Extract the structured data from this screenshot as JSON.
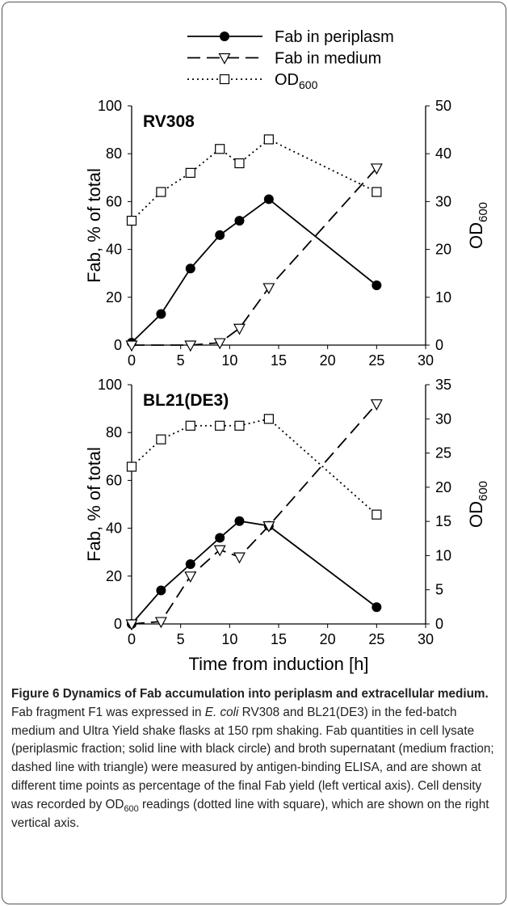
{
  "chart_data": [
    {
      "type": "line",
      "title": "RV308",
      "ylabel": "Fab, % of total",
      "y2label": "OD",
      "y2label_sub": "600",
      "xlim": [
        0,
        30
      ],
      "xticks": [
        0,
        5,
        10,
        15,
        20,
        25,
        30
      ],
      "ylim": [
        0,
        100
      ],
      "yticks": [
        0,
        20,
        40,
        60,
        80,
        100
      ],
      "y2lim": [
        0,
        50
      ],
      "y2ticks": [
        0,
        10,
        20,
        30,
        40,
        50
      ],
      "series": [
        {
          "name": "Fab in periplasm",
          "color": "#000000",
          "dash": "solid",
          "marker": "circle",
          "x": [
            0,
            3,
            6,
            9,
            11,
            14,
            25
          ],
          "values": [
            1,
            13,
            32,
            46,
            52,
            61,
            25
          ]
        },
        {
          "name": "Fab in medium",
          "color": "#000000",
          "dash": "dashed",
          "marker": "triangle",
          "x": [
            0,
            6,
            9,
            11,
            14,
            25
          ],
          "values": [
            0,
            0,
            1,
            7,
            24,
            74
          ]
        },
        {
          "name": "OD",
          "name_sub": "600",
          "color": "#000000",
          "dash": "dotted",
          "marker": "square",
          "axis": "y2",
          "x": [
            0,
            3,
            6,
            9,
            11,
            14,
            25
          ],
          "values": [
            26,
            32,
            36,
            41,
            38,
            43,
            32
          ]
        }
      ]
    },
    {
      "type": "line",
      "title": "BL21(DE3)",
      "ylabel": "Fab, % of total",
      "y2label": "OD",
      "y2label_sub": "600",
      "xlabel": "Time from induction [h]",
      "xlim": [
        0,
        30
      ],
      "xticks": [
        0,
        5,
        10,
        15,
        20,
        25,
        30
      ],
      "ylim": [
        0,
        100
      ],
      "yticks": [
        0,
        20,
        40,
        60,
        80,
        100
      ],
      "y2lim": [
        0,
        35
      ],
      "y2ticks": [
        0,
        5,
        10,
        15,
        20,
        25,
        30,
        35
      ],
      "series": [
        {
          "color": "#000000",
          "dash": "solid",
          "marker": "circle",
          "x": [
            0,
            3,
            6,
            9,
            11,
            14,
            25
          ],
          "values": [
            0,
            14,
            25,
            36,
            43,
            41,
            7
          ]
        },
        {
          "color": "#000000",
          "dash": "dashed",
          "marker": "triangle",
          "x": [
            0,
            3,
            6,
            9,
            11,
            14,
            25
          ],
          "values": [
            0,
            1,
            20,
            31,
            28,
            41,
            92
          ]
        },
        {
          "color": "#000000",
          "dash": "dotted",
          "marker": "square",
          "axis": "y2",
          "x": [
            0,
            3,
            6,
            9,
            11,
            14,
            25
          ],
          "values": [
            23,
            27,
            29,
            29,
            29,
            30,
            16
          ]
        }
      ]
    }
  ],
  "caption": [
    {
      "text": "Figure 6 Dynamics of Fab accumulation into periplasm and extracellular medium.",
      "style": "bold"
    },
    {
      "text": " Fab fragment F1 was expressed in ",
      "style": "normal"
    },
    {
      "text": "E. coli",
      "style": "italic"
    },
    {
      "text": " RV308 and BL21(DE3) in the fed-batch medium and Ultra Yield shake flasks at 150 rpm shaking. Fab quantities in cell lysate (periplasmic fraction; solid line with black circle) and broth supernatant (medium fraction; dashed line with triangle) were measured by antigen-binding ELISA, and are shown at different time points as percentage of the final Fab yield (left vertical axis). Cell density was recorded by OD",
      "style": "normal"
    },
    {
      "text": "600",
      "style": "sub"
    },
    {
      "text": " readings (dotted line with square), which are shown on the right vertical axis.",
      "style": "normal"
    }
  ]
}
